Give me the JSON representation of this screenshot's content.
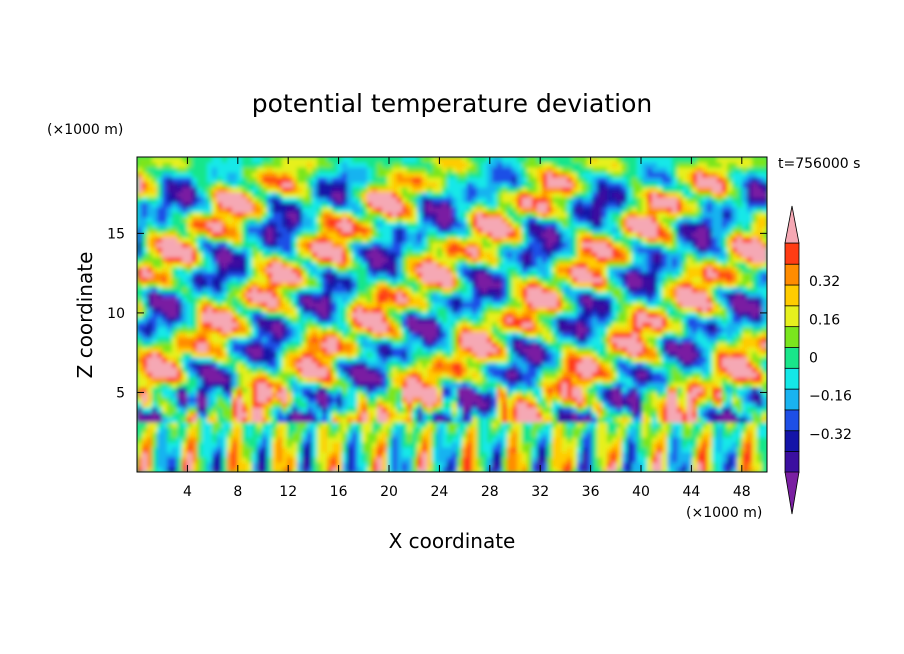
{
  "chart_data": {
    "type": "heatmap",
    "title": "potential temperature deviation",
    "xlabel": "X coordinate",
    "ylabel": "Z coordinate",
    "x_unit": "(×1000 m)",
    "y_unit": "(×1000 m)",
    "time_label": "t=756000 s",
    "xlim": [
      0,
      50
    ],
    "ylim": [
      0,
      19.8
    ],
    "x_ticks": [
      4,
      8,
      12,
      16,
      20,
      24,
      28,
      32,
      36,
      40,
      44,
      48
    ],
    "y_ticks": [
      5,
      10,
      15
    ],
    "colorbar": {
      "levels": [
        -0.48,
        -0.4,
        -0.32,
        -0.24,
        -0.16,
        -0.08,
        0,
        0.08,
        0.16,
        0.24,
        0.32,
        0.4,
        0.48
      ],
      "labeled_ticks": [
        "0.32",
        "0.16",
        "0",
        "−0.16",
        "−0.32"
      ],
      "labeled_values": [
        0.32,
        0.16,
        0,
        -0.16,
        -0.32
      ],
      "colors": [
        "#7a1fa2",
        "#3b0fa0",
        "#1414a8",
        "#1e4fe6",
        "#19b3f0",
        "#14e8e8",
        "#19e68a",
        "#7ae61e",
        "#e6f01e",
        "#ffcc00",
        "#ff8c00",
        "#ff3c14",
        "#f5a8b4"
      ]
    }
  }
}
